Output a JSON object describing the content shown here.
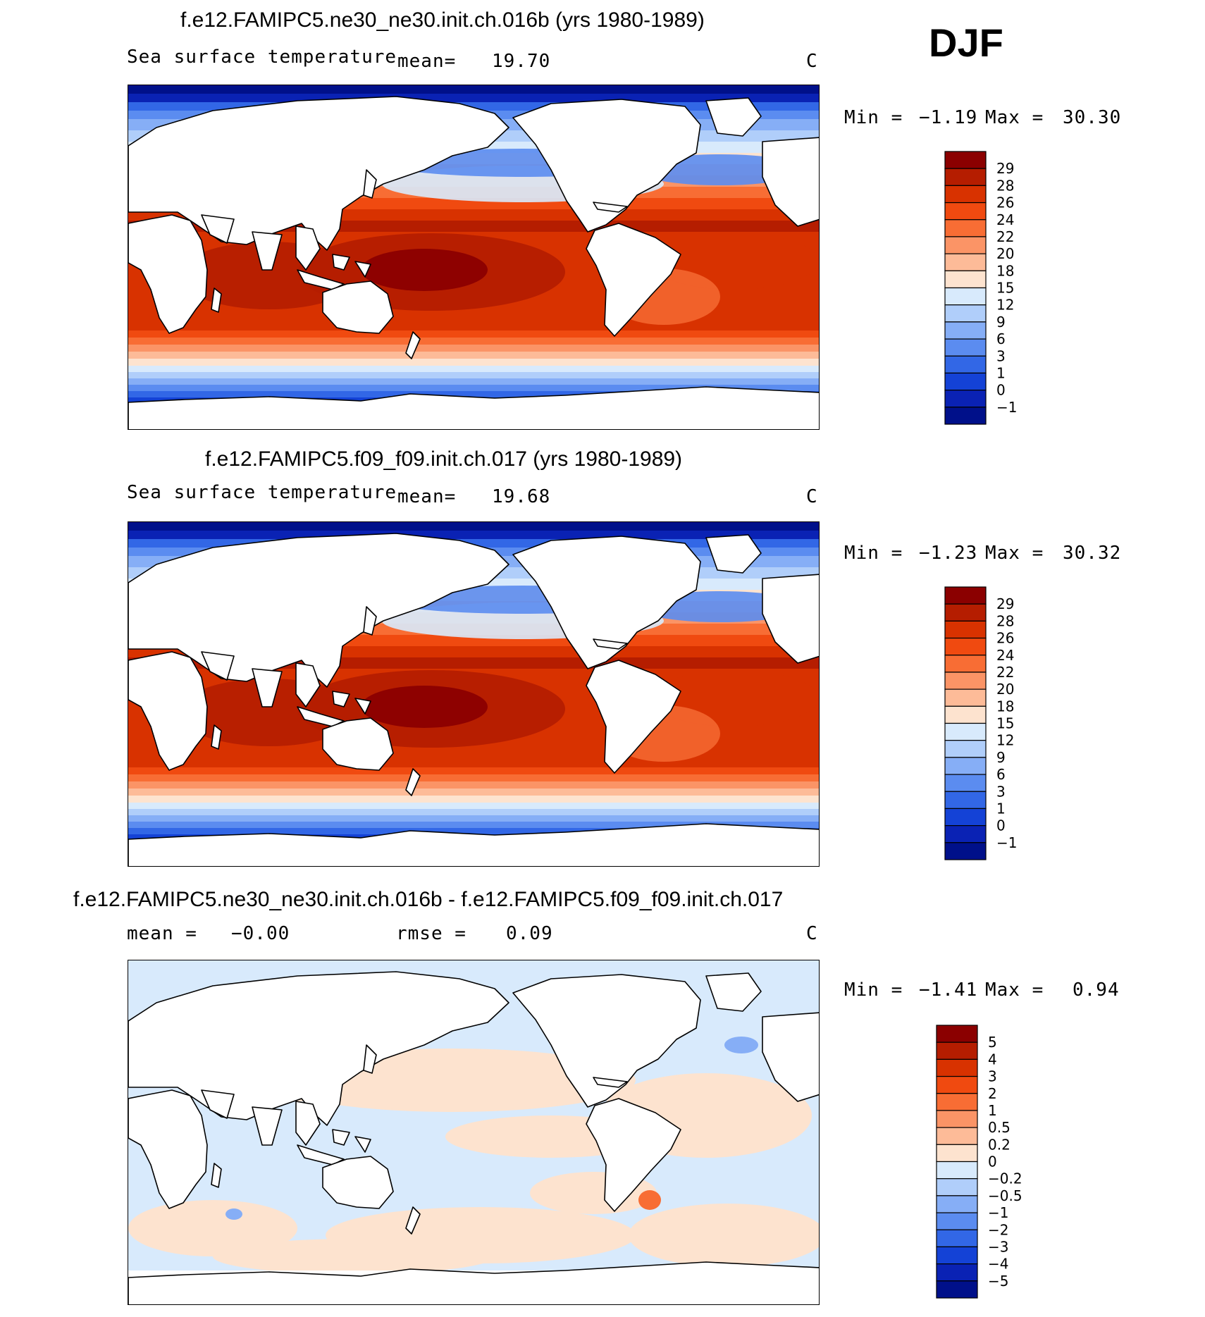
{
  "season": "DJF",
  "panels": [
    {
      "title": "f.e12.FAMIPC5.ne30_ne30.init.ch.016b (yrs 1980-1989)",
      "variable": "Sea surface temperature",
      "mean_label": "mean=",
      "mean_value": "19.70",
      "units": "C",
      "min_label": "Min =",
      "min_value": "−1.19",
      "max_label": "Max =",
      "max_value": "30.30",
      "levels": [
        "29",
        "28",
        "26",
        "24",
        "22",
        "20",
        "18",
        "15",
        "12",
        "9",
        "6",
        "3",
        "1",
        "0",
        "−1"
      ],
      "colors": [
        "#8b0000",
        "#b51d00",
        "#d83200",
        "#f04a10",
        "#f86d34",
        "#fb9466",
        "#fdbb98",
        "#fde3cf",
        "#d8eafc",
        "#b0cefa",
        "#86aef6",
        "#5b8cf0",
        "#3267e6",
        "#1442d6",
        "#0a22b4",
        "#00108a"
      ]
    },
    {
      "title": "f.e12.FAMIPC5.f09_f09.init.ch.017 (yrs 1980-1989)",
      "variable": "Sea surface temperature",
      "mean_label": "mean=",
      "mean_value": "19.68",
      "units": "C",
      "min_label": "Min =",
      "min_value": "−1.23",
      "max_label": "Max =",
      "max_value": "30.32",
      "levels": [
        "29",
        "28",
        "26",
        "24",
        "22",
        "20",
        "18",
        "15",
        "12",
        "9",
        "6",
        "3",
        "1",
        "0",
        "−1"
      ],
      "colors": [
        "#8b0000",
        "#b51d00",
        "#d83200",
        "#f04a10",
        "#f86d34",
        "#fb9466",
        "#fdbb98",
        "#fde3cf",
        "#d8eafc",
        "#b0cefa",
        "#86aef6",
        "#5b8cf0",
        "#3267e6",
        "#1442d6",
        "#0a22b4",
        "#00108a"
      ]
    },
    {
      "title": "f.e12.FAMIPC5.ne30_ne30.init.ch.016b - f.e12.FAMIPC5.f09_f09.init.ch.017",
      "mean_label": "mean =",
      "mean_value": "−0.00",
      "rmse_label": "rmse =",
      "rmse_value": "0.09",
      "units": "C",
      "min_label": "Min =",
      "min_value": "−1.41",
      "max_label": "Max =",
      "max_value": "0.94",
      "levels": [
        "5",
        "4",
        "3",
        "2",
        "1",
        "0.5",
        "0.2",
        "0",
        "−0.2",
        "−0.5",
        "−1",
        "−2",
        "−3",
        "−4",
        "−5"
      ],
      "colors": [
        "#8b0000",
        "#b51d00",
        "#d83200",
        "#f04a10",
        "#f86d34",
        "#fb9466",
        "#fdbb98",
        "#fde3cf",
        "#d8eafc",
        "#b0cefa",
        "#86aef6",
        "#5b8cf0",
        "#3267e6",
        "#1442d6",
        "#0a22b4",
        "#00108a"
      ]
    }
  ],
  "chart_data": [
    {
      "type": "heatmap",
      "title": "f.e12.FAMIPC5.ne30_ne30.init.ch.016b (yrs 1980-1989)",
      "variable": "Sea surface temperature",
      "season": "DJF",
      "mean": 19.7,
      "min": -1.19,
      "max": 30.3,
      "units": "C",
      "contour_levels": [
        -1,
        0,
        1,
        3,
        6,
        9,
        12,
        15,
        18,
        20,
        22,
        24,
        26,
        28,
        29
      ]
    },
    {
      "type": "heatmap",
      "title": "f.e12.FAMIPC5.f09_f09.init.ch.017 (yrs 1980-1989)",
      "variable": "Sea surface temperature",
      "season": "DJF",
      "mean": 19.68,
      "min": -1.23,
      "max": 30.32,
      "units": "C",
      "contour_levels": [
        -1,
        0,
        1,
        3,
        6,
        9,
        12,
        15,
        18,
        20,
        22,
        24,
        26,
        28,
        29
      ]
    },
    {
      "type": "heatmap",
      "title": "f.e12.FAMIPC5.ne30_ne30.init.ch.016b - f.e12.FAMIPC5.f09_f09.init.ch.017",
      "season": "DJF",
      "mean": -0.0,
      "rmse": 0.09,
      "min": -1.41,
      "max": 0.94,
      "units": "C",
      "contour_levels": [
        -5,
        -4,
        -3,
        -2,
        -1,
        -0.5,
        -0.2,
        0,
        0.2,
        0.5,
        1,
        2,
        3,
        4,
        5
      ]
    }
  ]
}
